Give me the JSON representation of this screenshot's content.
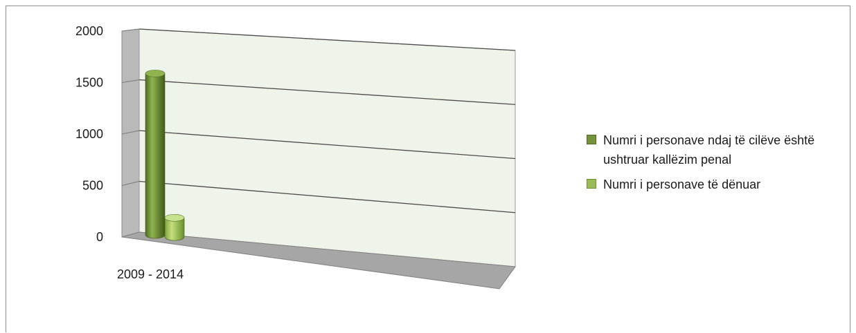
{
  "chart_data": {
    "type": "bar",
    "style": "3d-cylinder",
    "categories": [
      "2009 - 2014"
    ],
    "series": [
      {
        "name": "Numri i personave ndaj të cilëve është ushtruar kallëzim penal",
        "values": [
          1600
        ],
        "color": "#76923c"
      },
      {
        "name": "Numri i personave të dënuar",
        "values": [
          190
        ],
        "color": "#9bbb59"
      }
    ],
    "ylim": [
      0,
      2000
    ],
    "yticks": [
      0,
      500,
      1000,
      1500,
      2000
    ],
    "grid": true,
    "legend_position": "right",
    "wall_color": "#eef4ea",
    "floor_color": "#a6a6a6"
  }
}
